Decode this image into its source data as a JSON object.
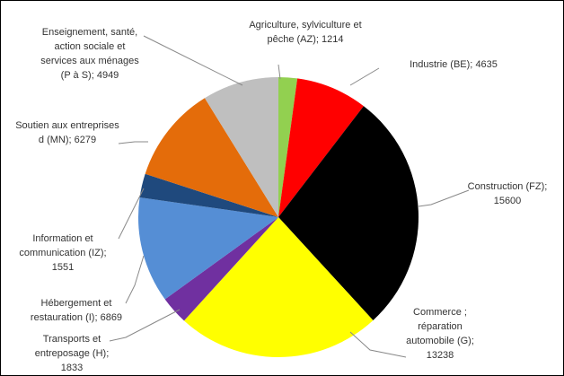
{
  "chart_data": {
    "type": "pie",
    "categories": [
      "Agriculture, sylviculture et pêche (AZ);",
      "Industrie (BE);",
      "Construction (FZ);",
      "Commerce ; réparation automobile (G);",
      "Transports et entreposage (H);",
      "Hébergement et restauration (I);",
      "Information et communication (IZ);",
      "Soutien aux entreprises d (MN);",
      "Enseignement, santé, action sociale et services aux ménages (P à S);"
    ],
    "values": [
      1214,
      4635,
      15600,
      13238,
      1833,
      6869,
      1551,
      6279,
      4949
    ],
    "colors": [
      "#92d050",
      "#ff0000",
      "#000000",
      "#ffff00",
      "#7030a0",
      "#558ed5",
      "#1f497d",
      "#e46c0a",
      "#bfbfbf"
    ]
  }
}
